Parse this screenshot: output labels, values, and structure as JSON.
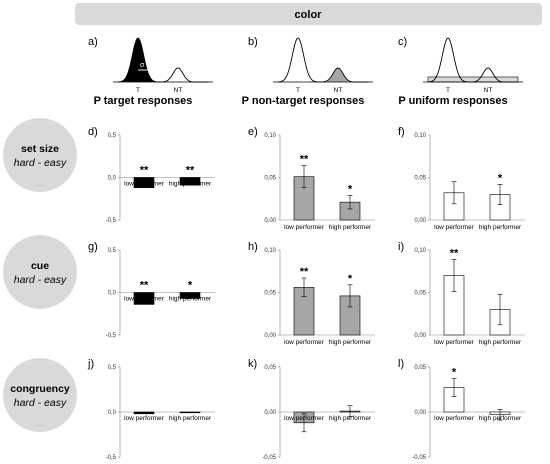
{
  "header": {
    "title": "color"
  },
  "top_panels": [
    {
      "letter": "a)",
      "title": "P target responses",
      "t_label": "T",
      "nt_label": "NT",
      "sigma_label": "σ",
      "fill": "target"
    },
    {
      "letter": "b)",
      "title": "P non-target responses",
      "t_label": "T",
      "nt_label": "NT",
      "fill": "nontarget"
    },
    {
      "letter": "c)",
      "title": "P uniform responses",
      "t_label": "T",
      "nt_label": "NT",
      "fill": "uniform"
    }
  ],
  "rows": [
    {
      "label_main": "set size",
      "label_sub": "hard - easy"
    },
    {
      "label_main": "cue",
      "label_sub": "hard - easy"
    },
    {
      "label_main": "congruency",
      "label_sub": "hard - easy"
    }
  ],
  "colors": {
    "target": "#000000",
    "nontarget": "#a6a6a6",
    "uniform": "#ffffff",
    "row_circle": "#d9d9d9",
    "header_bar": "#d9d9d9"
  },
  "chart_data": [
    {
      "letter": "d)",
      "type": "bar",
      "categories": [
        "low performer",
        "high performer"
      ],
      "values": [
        -0.12,
        -0.09
      ],
      "errors": [
        0.0,
        0.0
      ],
      "stars": [
        "**",
        "**"
      ],
      "ylim": [
        -0.5,
        0.5
      ],
      "yticks": [
        "-0,5",
        "0,0",
        "0,5"
      ],
      "fill": "target"
    },
    {
      "letter": "e)",
      "type": "bar",
      "categories": [
        "low performer",
        "high performer"
      ],
      "values": [
        0.051,
        0.021
      ],
      "errors": [
        0.013,
        0.008
      ],
      "stars": [
        "**",
        "*"
      ],
      "ylim": [
        0,
        0.1
      ],
      "yticks": [
        "0,00",
        "0,05",
        "0,10"
      ],
      "fill": "nontarget"
    },
    {
      "letter": "f)",
      "type": "bar",
      "categories": [
        "low performer",
        "high performer"
      ],
      "values": [
        0.032,
        0.03
      ],
      "errors": [
        0.013,
        0.012
      ],
      "stars": [
        "",
        "*"
      ],
      "ylim": [
        0,
        0.1
      ],
      "yticks": [
        "0,00",
        "0,05",
        "0,10"
      ],
      "fill": "uniform"
    },
    {
      "letter": "g)",
      "type": "bar",
      "categories": [
        "low performer",
        "high performer"
      ],
      "values": [
        -0.14,
        -0.07
      ],
      "errors": [
        0.0,
        0.0
      ],
      "stars": [
        "**",
        "*"
      ],
      "ylim": [
        -0.5,
        0.5
      ],
      "yticks": [
        "-0,5",
        "0,0",
        "0,5"
      ],
      "fill": "target"
    },
    {
      "letter": "h)",
      "type": "bar",
      "categories": [
        "low performer",
        "high performer"
      ],
      "values": [
        0.056,
        0.046
      ],
      "errors": [
        0.011,
        0.013
      ],
      "stars": [
        "**",
        "*"
      ],
      "ylim": [
        0,
        0.1
      ],
      "yticks": [
        "0,00",
        "0,05",
        "0,10"
      ],
      "fill": "nontarget"
    },
    {
      "letter": "i)",
      "type": "bar",
      "categories": [
        "low performer",
        "high performer"
      ],
      "values": [
        0.07,
        0.03
      ],
      "errors": [
        0.019,
        0.018
      ],
      "stars": [
        "**",
        ""
      ],
      "ylim": [
        0,
        0.1
      ],
      "yticks": [
        "0,00",
        "0,05",
        "0,10"
      ],
      "fill": "uniform"
    },
    {
      "letter": "j)",
      "type": "bar",
      "categories": [
        "low performer",
        "high performer"
      ],
      "values": [
        -0.02,
        0.0
      ],
      "errors": [
        0.0,
        0.0
      ],
      "stars": [
        "",
        ""
      ],
      "ylim": [
        -0.5,
        0.5
      ],
      "yticks": [
        "-0,5",
        "0,0",
        "0,5"
      ],
      "fill": "target"
    },
    {
      "letter": "k)",
      "type": "bar",
      "categories": [
        "low performer",
        "high performer"
      ],
      "values": [
        -0.012,
        0.001
      ],
      "errors": [
        0.01,
        0.006
      ],
      "stars": [
        "",
        ""
      ],
      "ylim": [
        -0.05,
        0.05
      ],
      "yticks": [
        "-0,05",
        "0,00",
        "0,05"
      ],
      "fill": "nontarget"
    },
    {
      "letter": "l)",
      "type": "bar",
      "categories": [
        "low performer",
        "high performer"
      ],
      "values": [
        0.027,
        -0.003
      ],
      "errors": [
        0.01,
        0.006
      ],
      "stars": [
        "*",
        ""
      ],
      "ylim": [
        -0.05,
        0.05
      ],
      "yticks": [
        "-0,05",
        "0,00",
        "0,05"
      ],
      "fill": "uniform"
    }
  ]
}
